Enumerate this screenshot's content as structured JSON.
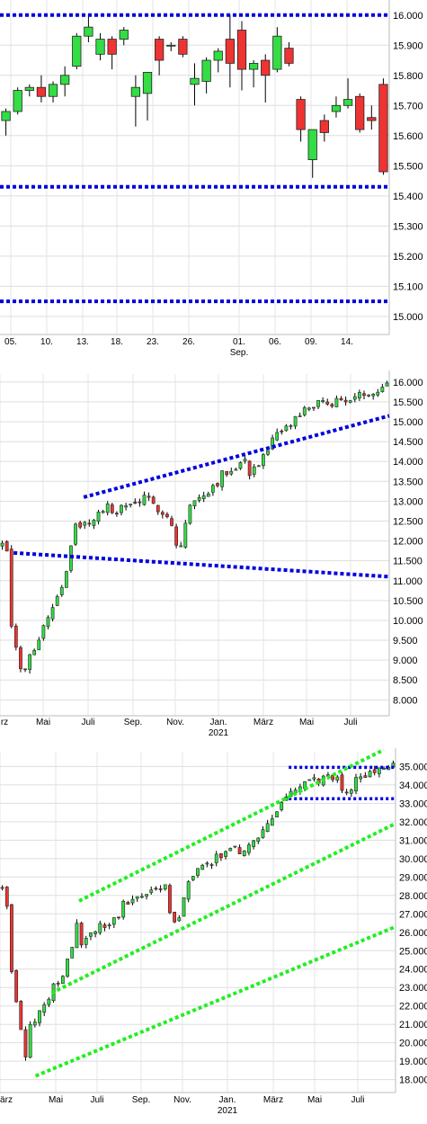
{
  "chart_data": [
    {
      "type": "candlestick",
      "x_ticks": [
        "05.",
        "10.",
        "13.",
        "18.",
        "23.",
        "26.",
        "01.",
        "06.",
        "09.",
        "14."
      ],
      "x_sublabel": "Sep.",
      "y_ticks": [
        "16.000",
        "15.900",
        "15.800",
        "15.700",
        "15.600",
        "15.500",
        "15.400",
        "15.300",
        "15.200",
        "15.100",
        "15.000"
      ],
      "ylim": [
        14.94,
        16.05
      ],
      "colors": {
        "up": "#33dd44",
        "down": "#ee3333",
        "line": "#0000dd",
        "wick": "#000000"
      },
      "hlines": [
        16.0,
        15.43,
        15.05
      ],
      "candles": [
        {
          "o": 15.65,
          "h": 15.69,
          "l": 15.6,
          "c": 15.68
        },
        {
          "o": 15.68,
          "h": 15.76,
          "l": 15.67,
          "c": 15.75
        },
        {
          "o": 15.75,
          "h": 15.77,
          "l": 15.73,
          "c": 15.76
        },
        {
          "o": 15.76,
          "h": 15.8,
          "l": 15.71,
          "c": 15.73
        },
        {
          "o": 15.73,
          "h": 15.78,
          "l": 15.71,
          "c": 15.77
        },
        {
          "o": 15.77,
          "h": 15.83,
          "l": 15.73,
          "c": 15.8
        },
        {
          "o": 15.83,
          "h": 15.94,
          "l": 15.82,
          "c": 15.93
        },
        {
          "o": 15.93,
          "h": 16.0,
          "l": 15.91,
          "c": 15.96
        },
        {
          "o": 15.87,
          "h": 15.94,
          "l": 15.85,
          "c": 15.92
        },
        {
          "o": 15.92,
          "h": 15.93,
          "l": 15.82,
          "c": 15.87
        },
        {
          "o": 15.92,
          "h": 15.96,
          "l": 15.9,
          "c": 15.95
        },
        {
          "o": 15.73,
          "h": 15.8,
          "l": 15.63,
          "c": 15.76
        },
        {
          "o": 15.74,
          "h": 15.81,
          "l": 15.65,
          "c": 15.81
        },
        {
          "o": 15.92,
          "h": 15.93,
          "l": 15.8,
          "c": 15.85
        },
        {
          "o": 15.9,
          "h": 15.91,
          "l": 15.88,
          "c": 15.9
        },
        {
          "o": 15.92,
          "h": 15.93,
          "l": 15.86,
          "c": 15.87
        },
        {
          "o": 15.77,
          "h": 15.84,
          "l": 15.7,
          "c": 15.79
        },
        {
          "o": 15.78,
          "h": 15.86,
          "l": 15.74,
          "c": 15.85
        },
        {
          "o": 15.85,
          "h": 15.89,
          "l": 15.81,
          "c": 15.88
        },
        {
          "o": 15.92,
          "h": 16.0,
          "l": 15.76,
          "c": 15.84
        },
        {
          "o": 15.95,
          "h": 15.98,
          "l": 15.75,
          "c": 15.82
        },
        {
          "o": 15.82,
          "h": 15.85,
          "l": 15.76,
          "c": 15.84
        },
        {
          "o": 15.85,
          "h": 15.87,
          "l": 15.71,
          "c": 15.8
        },
        {
          "o": 15.82,
          "h": 15.96,
          "l": 15.81,
          "c": 15.93
        },
        {
          "o": 15.89,
          "h": 15.91,
          "l": 15.83,
          "c": 15.84
        },
        {
          "o": 15.72,
          "h": 15.73,
          "l": 15.58,
          "c": 15.62
        },
        {
          "o": 15.52,
          "h": 15.62,
          "l": 15.46,
          "c": 15.62
        },
        {
          "o": 15.65,
          "h": 15.67,
          "l": 15.58,
          "c": 15.61
        },
        {
          "o": 15.68,
          "h": 15.73,
          "l": 15.66,
          "c": 15.7
        },
        {
          "o": 15.7,
          "h": 15.79,
          "l": 15.69,
          "c": 15.72
        },
        {
          "o": 15.73,
          "h": 15.74,
          "l": 15.61,
          "c": 15.62
        },
        {
          "o": 15.66,
          "h": 15.7,
          "l": 15.62,
          "c": 15.65
        },
        {
          "o": 15.77,
          "h": 15.79,
          "l": 15.47,
          "c": 15.48
        }
      ]
    },
    {
      "type": "candlestick",
      "x_ticks": [
        "rz",
        "Mai",
        "Juli",
        "Sep.",
        "Nov.",
        "Jan.",
        "März",
        "Mai",
        "Juli"
      ],
      "x_sublabel": "2021",
      "y_ticks": [
        "16.000",
        "15.500",
        "15.000",
        "14.500",
        "14.000",
        "13.500",
        "13.000",
        "12.500",
        "12.000",
        "11.500",
        "11.000",
        "10.500",
        "10.000",
        "9.500",
        "9.000",
        "8.500",
        "8.000"
      ],
      "ylim": [
        7.6,
        16.2
      ],
      "colors": {
        "up": "#33dd44",
        "down": "#ee3333",
        "line": "#0000dd",
        "wick": "#000000"
      },
      "trend_lines": [
        {
          "from": [
            0.215,
            13.1
          ],
          "to": [
            1.0,
            15.15
          ]
        },
        {
          "from": [
            0.035,
            11.7
          ],
          "to": [
            1.0,
            11.1
          ]
        }
      ],
      "segments": [
        {
          "t0": 0.0,
          "t1": 0.015,
          "p0": 12.0,
          "p1": 11.8
        },
        {
          "t0": 0.015,
          "t1": 0.05,
          "p0": 10.4,
          "p1": 8.6
        },
        {
          "t0": 0.05,
          "t1": 0.16,
          "p0": 8.6,
          "p1": 11.0
        },
        {
          "t0": 0.16,
          "t1": 0.2,
          "p0": 11.0,
          "p1": 12.8
        },
        {
          "t0": 0.2,
          "t1": 0.28,
          "p0": 12.3,
          "p1": 12.9
        },
        {
          "t0": 0.28,
          "t1": 0.38,
          "p0": 12.7,
          "p1": 13.1
        },
        {
          "t0": 0.38,
          "t1": 0.44,
          "p0": 13.0,
          "p1": 12.6
        },
        {
          "t0": 0.44,
          "t1": 0.46,
          "p0": 12.4,
          "p1": 11.6
        },
        {
          "t0": 0.46,
          "t1": 0.48,
          "p0": 11.7,
          "p1": 12.6
        },
        {
          "t0": 0.48,
          "t1": 0.56,
          "p0": 12.8,
          "p1": 13.5
        },
        {
          "t0": 0.56,
          "t1": 0.64,
          "p0": 13.6,
          "p1": 14.1
        },
        {
          "t0": 0.64,
          "t1": 0.7,
          "p0": 13.7,
          "p1": 14.3
        },
        {
          "t0": 0.7,
          "t1": 0.8,
          "p0": 14.5,
          "p1": 15.4
        },
        {
          "t0": 0.8,
          "t1": 0.92,
          "p0": 15.4,
          "p1": 15.6
        },
        {
          "t0": 0.92,
          "t1": 1.0,
          "p0": 15.6,
          "p1": 15.95
        }
      ]
    },
    {
      "type": "candlestick",
      "x_ticks": [
        "ärz",
        "Mai",
        "Juli",
        "Sep.",
        "Nov.",
        "Jan.",
        "März",
        "Mai",
        "Juli"
      ],
      "x_sublabel": "2021",
      "y_ticks": [
        "35.000",
        "34.000",
        "33.000",
        "32.000",
        "31.000",
        "30.000",
        "29.000",
        "28.000",
        "27.000",
        "26.000",
        "25.000",
        "24.000",
        "23.000",
        "22.000",
        "21.000",
        "20.000",
        "19.000",
        "18.000"
      ],
      "ylim": [
        17.3,
        35.8
      ],
      "colors": {
        "up": "#33dd44",
        "down": "#ee3333",
        "line": "#0000dd",
        "green_line": "#22ee22",
        "wick": "#000000"
      },
      "trend_lines": [
        {
          "from": [
            0.09,
            18.2
          ],
          "to": [
            1.0,
            26.3
          ]
        },
        {
          "from": [
            0.13,
            22.7
          ],
          "to": [
            1.0,
            31.9
          ]
        },
        {
          "from": [
            0.2,
            27.7
          ],
          "to": [
            0.97,
            35.9
          ]
        }
      ],
      "hlines_partial": [
        {
          "y": 34.95,
          "x0": 0.73,
          "x1": 1.0
        },
        {
          "y": 33.25,
          "x0": 0.73,
          "x1": 1.0
        }
      ],
      "segments": [
        {
          "t0": 0.0,
          "t1": 0.02,
          "p0": 28.5,
          "p1": 26.5
        },
        {
          "t0": 0.02,
          "t1": 0.06,
          "p0": 24.5,
          "p1": 19.2
        },
        {
          "t0": 0.06,
          "t1": 0.16,
          "p0": 20.5,
          "p1": 24.0
        },
        {
          "t0": 0.16,
          "t1": 0.2,
          "p0": 24.0,
          "p1": 27.0
        },
        {
          "t0": 0.2,
          "t1": 0.3,
          "p0": 25.5,
          "p1": 27.0
        },
        {
          "t0": 0.3,
          "t1": 0.42,
          "p0": 27.5,
          "p1": 28.5
        },
        {
          "t0": 0.42,
          "t1": 0.45,
          "p0": 27.3,
          "p1": 26.5
        },
        {
          "t0": 0.45,
          "t1": 0.48,
          "p0": 26.5,
          "p1": 29.0
        },
        {
          "t0": 0.48,
          "t1": 0.6,
          "p0": 29.0,
          "p1": 30.8
        },
        {
          "t0": 0.6,
          "t1": 0.66,
          "p0": 30.3,
          "p1": 31.3
        },
        {
          "t0": 0.66,
          "t1": 0.76,
          "p0": 31.5,
          "p1": 34.0
        },
        {
          "t0": 0.76,
          "t1": 0.86,
          "p0": 34.0,
          "p1": 34.6
        },
        {
          "t0": 0.86,
          "t1": 0.9,
          "p0": 34.0,
          "p1": 33.6
        },
        {
          "t0": 0.9,
          "t1": 1.0,
          "p0": 34.3,
          "p1": 35.2
        }
      ]
    }
  ]
}
